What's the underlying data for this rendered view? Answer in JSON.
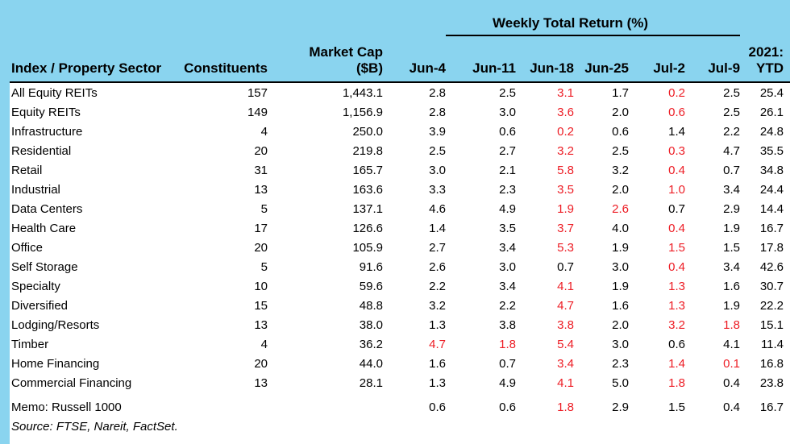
{
  "colors": {
    "background_blue": "#8ad4ef",
    "negative_red": "#ed1c24",
    "text_black": "#000000"
  },
  "header": {
    "weekly_title": "Weekly Total Return (%)",
    "columns": [
      "Index / Property Sector",
      "Constituents",
      "Market Cap\n($B)",
      "Jun-4",
      "Jun-11",
      "Jun-18",
      "Jun-25",
      "Jul-2",
      "Jul-9",
      "2021:\nYTD"
    ]
  },
  "rows": [
    {
      "sector": "All Equity REITs",
      "constituents": "157",
      "market_cap": "1,443.1",
      "returns": [
        "2.8",
        "2.5",
        "3.1",
        "1.7",
        "0.2",
        "2.5"
      ],
      "red": [
        false,
        false,
        true,
        false,
        true,
        false
      ],
      "ytd": "25.4"
    },
    {
      "sector": "Equity REITs",
      "constituents": "149",
      "market_cap": "1,156.9",
      "returns": [
        "2.8",
        "3.0",
        "3.6",
        "2.0",
        "0.6",
        "2.5"
      ],
      "red": [
        false,
        false,
        true,
        false,
        true,
        false
      ],
      "ytd": "26.1"
    },
    {
      "sector": "Infrastructure",
      "constituents": "4",
      "market_cap": "250.0",
      "returns": [
        "3.9",
        "0.6",
        "0.2",
        "0.6",
        "1.4",
        "2.2"
      ],
      "red": [
        false,
        false,
        true,
        false,
        false,
        false
      ],
      "ytd": "24.8"
    },
    {
      "sector": "Residential",
      "constituents": "20",
      "market_cap": "219.8",
      "returns": [
        "2.5",
        "2.7",
        "3.2",
        "2.5",
        "0.3",
        "4.7"
      ],
      "red": [
        false,
        false,
        true,
        false,
        true,
        false
      ],
      "ytd": "35.5"
    },
    {
      "sector": "Retail",
      "constituents": "31",
      "market_cap": "165.7",
      "returns": [
        "3.0",
        "2.1",
        "5.8",
        "3.2",
        "0.4",
        "0.7"
      ],
      "red": [
        false,
        false,
        true,
        false,
        true,
        false
      ],
      "ytd": "34.8"
    },
    {
      "sector": "Industrial",
      "constituents": "13",
      "market_cap": "163.6",
      "returns": [
        "3.3",
        "2.3",
        "3.5",
        "2.0",
        "1.0",
        "3.4"
      ],
      "red": [
        false,
        false,
        true,
        false,
        true,
        false
      ],
      "ytd": "24.4"
    },
    {
      "sector": "Data Centers",
      "constituents": "5",
      "market_cap": "137.1",
      "returns": [
        "4.6",
        "4.9",
        "1.9",
        "2.6",
        "0.7",
        "2.9"
      ],
      "red": [
        false,
        false,
        true,
        true,
        false,
        false
      ],
      "ytd": "14.4"
    },
    {
      "sector": "Health Care",
      "constituents": "17",
      "market_cap": "126.6",
      "returns": [
        "1.4",
        "3.5",
        "3.7",
        "4.0",
        "0.4",
        "1.9"
      ],
      "red": [
        false,
        false,
        true,
        false,
        true,
        false
      ],
      "ytd": "16.7"
    },
    {
      "sector": "Office",
      "constituents": "20",
      "market_cap": "105.9",
      "returns": [
        "2.7",
        "3.4",
        "5.3",
        "1.9",
        "1.5",
        "1.5"
      ],
      "red": [
        false,
        false,
        true,
        false,
        true,
        false
      ],
      "ytd": "17.8"
    },
    {
      "sector": "Self Storage",
      "constituents": "5",
      "market_cap": "91.6",
      "returns": [
        "2.6",
        "3.0",
        "0.7",
        "3.0",
        "0.4",
        "3.4"
      ],
      "red": [
        false,
        false,
        false,
        false,
        true,
        false
      ],
      "ytd": "42.6"
    },
    {
      "sector": "Specialty",
      "constituents": "10",
      "market_cap": "59.6",
      "returns": [
        "2.2",
        "3.4",
        "4.1",
        "1.9",
        "1.3",
        "1.6"
      ],
      "red": [
        false,
        false,
        true,
        false,
        true,
        false
      ],
      "ytd": "30.7"
    },
    {
      "sector": "Diversified",
      "constituents": "15",
      "market_cap": "48.8",
      "returns": [
        "3.2",
        "2.2",
        "4.7",
        "1.6",
        "1.3",
        "1.9"
      ],
      "red": [
        false,
        false,
        true,
        false,
        true,
        false
      ],
      "ytd": "22.2"
    },
    {
      "sector": "Lodging/Resorts",
      "constituents": "13",
      "market_cap": "38.0",
      "returns": [
        "1.3",
        "3.8",
        "3.8",
        "2.0",
        "3.2",
        "1.8"
      ],
      "red": [
        false,
        false,
        true,
        false,
        true,
        true
      ],
      "ytd": "15.1"
    },
    {
      "sector": "Timber",
      "constituents": "4",
      "market_cap": "36.2",
      "returns": [
        "4.7",
        "1.8",
        "5.4",
        "3.0",
        "0.6",
        "4.1"
      ],
      "red": [
        true,
        true,
        true,
        false,
        false,
        false
      ],
      "ytd": "11.4"
    },
    {
      "sector": "Home Financing",
      "constituents": "20",
      "market_cap": "44.0",
      "returns": [
        "1.6",
        "0.7",
        "3.4",
        "2.3",
        "1.4",
        "0.1"
      ],
      "red": [
        false,
        false,
        true,
        false,
        true,
        true
      ],
      "ytd": "16.8"
    },
    {
      "sector": "Commercial Financing",
      "constituents": "13",
      "market_cap": "28.1",
      "returns": [
        "1.3",
        "4.9",
        "4.1",
        "5.0",
        "1.8",
        "0.4"
      ],
      "red": [
        false,
        false,
        true,
        false,
        true,
        false
      ],
      "ytd": "23.8"
    },
    {
      "sector": "Memo: Russell 1000",
      "constituents": "",
      "market_cap": "",
      "returns": [
        "0.6",
        "0.6",
        "1.8",
        "2.9",
        "1.5",
        "0.4"
      ],
      "red": [
        false,
        false,
        true,
        false,
        false,
        false
      ],
      "ytd": "16.7",
      "memo": true
    }
  ],
  "footer": {
    "source": "Source: FTSE, Nareit, FactSet."
  }
}
